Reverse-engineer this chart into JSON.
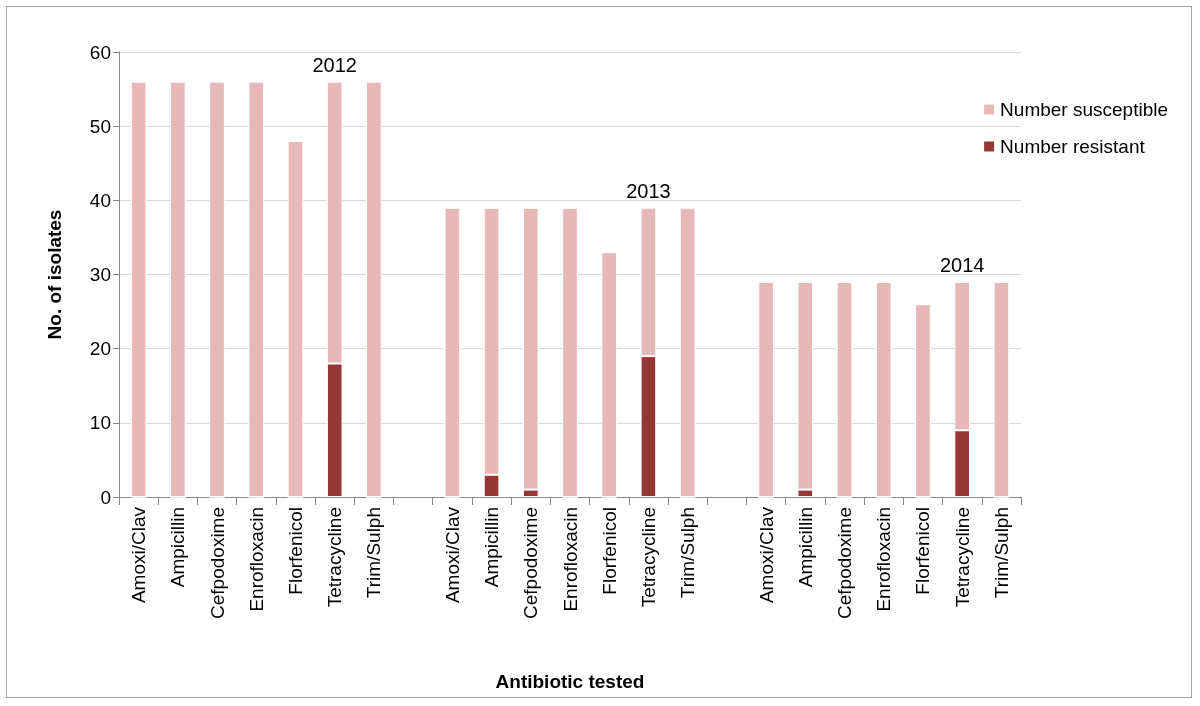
{
  "chart_data": {
    "type": "bar",
    "stacked": true,
    "xlabel": "Antibiotic tested",
    "ylabel": "No. of isolates",
    "categories": [
      "Amoxi/Clav",
      "Ampicillin",
      "Cefpodoxime",
      "Enrofloxacin",
      "Florfenicol",
      "Tetracycline",
      "Trim/Sulph",
      null,
      "Amoxi/Clav",
      "Ampicillin",
      "Cefpodoxime",
      "Enrofloxacin",
      "Florfenicol",
      "Tetracycline",
      "Trim/Sulph",
      null,
      "Amoxi/Clav",
      "Ampicillin",
      "Cefpodoxime",
      "Enrofloxacin",
      "Florfenicol",
      "Tetracycline",
      "Trim/Sulph"
    ],
    "series": [
      {
        "name": "Number resistant",
        "color": "#953735",
        "values": [
          0,
          0,
          0,
          0,
          0,
          18,
          0,
          null,
          0,
          3,
          1,
          0,
          0,
          19,
          0,
          null,
          0,
          1,
          0,
          0,
          0,
          9,
          0
        ]
      },
      {
        "name": "Number susceptible",
        "color": "#e6b9b8",
        "values": [
          56,
          56,
          56,
          56,
          48,
          38,
          56,
          null,
          39,
          36,
          38,
          39,
          33,
          20,
          39,
          null,
          29,
          28,
          29,
          29,
          26,
          20,
          29
        ]
      }
    ],
    "ylim": [
      0,
      60
    ],
    "yticks": [
      0,
      10,
      20,
      30,
      40,
      50,
      60
    ],
    "grid": "y",
    "legend": "top right",
    "annotations": [
      "2012",
      "2013",
      "2014"
    ]
  }
}
